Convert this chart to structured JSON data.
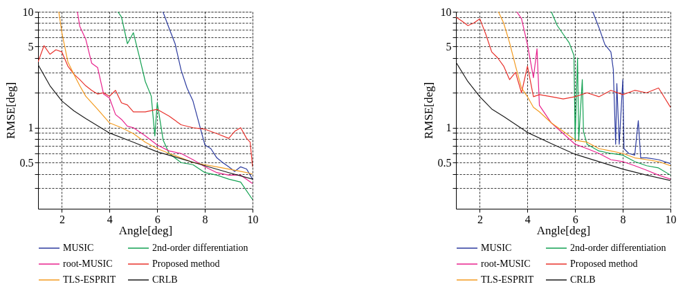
{
  "chart_data": [
    {
      "type": "line",
      "xlabel": "Angle[deg]",
      "ylabel": "RMSE[deg]",
      "log": "y",
      "grid": true,
      "legend": "bottom",
      "xlim": [
        1,
        10
      ],
      "xticks": [
        2,
        4,
        6,
        8,
        10
      ],
      "ylim": [
        0.2,
        10
      ],
      "yticks": [
        {
          "value": 0.3,
          "label": null
        },
        {
          "value": 0.4,
          "label": null
        },
        0.5,
        {
          "value": 0.6,
          "label": null
        },
        {
          "value": 0.7,
          "label": null
        },
        {
          "value": 0.8,
          "label": null
        },
        {
          "value": 0.9,
          "label": null
        },
        1,
        {
          "value": 2,
          "label": null
        },
        {
          "value": 3,
          "label": null
        },
        {
          "value": 4,
          "label": null
        },
        5,
        {
          "value": 6,
          "label": null
        },
        {
          "value": 7,
          "label": null
        },
        {
          "value": 8,
          "label": null
        },
        {
          "value": 9,
          "label": null
        },
        10
      ],
      "series": [
        {
          "name": "MUSIC",
          "color": "#2b3a9e",
          "x": [
            6.24,
            6.5,
            6.75,
            7,
            7.25,
            7.5,
            7.75,
            8,
            8.25,
            8.5,
            8.75,
            9,
            9.25,
            9.5,
            9.75,
            10
          ],
          "values": [
            10,
            7.2,
            5.3,
            3.15,
            2.2,
            1.7,
            1.1,
            0.71,
            0.66,
            0.55,
            0.5,
            0.46,
            0.42,
            0.46,
            0.44,
            0.36
          ]
        },
        {
          "name": "2nd-order differentiation",
          "color": "#11a050",
          "x": [
            4.35,
            4.5,
            4.75,
            5,
            5.25,
            5.5,
            5.75,
            5.9,
            6,
            6.25,
            6.5,
            7,
            7.5,
            8,
            8.5,
            9,
            9.5,
            10
          ],
          "values": [
            10,
            9.0,
            5.3,
            6.6,
            4.1,
            2.5,
            1.87,
            0.85,
            1.64,
            0.78,
            0.6,
            0.5,
            0.48,
            0.41,
            0.39,
            0.36,
            0.34,
            0.24
          ]
        },
        {
          "name": "root-MUSIC",
          "color": "#e8208c",
          "x": [
            2.65,
            2.75,
            3,
            3.25,
            3.5,
            3.75,
            4,
            4.25,
            4.5,
            4.75,
            5,
            5.5,
            6,
            6.5,
            7,
            7.5,
            8,
            8.5,
            9,
            9.5,
            10
          ],
          "values": [
            10,
            7.5,
            5.8,
            3.6,
            3.3,
            1.95,
            1.8,
            1.3,
            1.18,
            1.03,
            1.0,
            0.85,
            0.71,
            0.63,
            0.6,
            0.53,
            0.46,
            0.41,
            0.39,
            0.39,
            0.33
          ]
        },
        {
          "name": "Proposed method",
          "color": "#e8302a",
          "x": [
            1,
            1.25,
            1.5,
            1.75,
            2,
            2.25,
            2.5,
            2.75,
            3,
            3.25,
            3.5,
            3.75,
            4,
            4.25,
            4.5,
            4.75,
            5,
            5.5,
            6,
            6.5,
            7,
            7.5,
            8,
            8.5,
            9,
            9.25,
            9.5,
            9.75,
            9.9,
            10
          ],
          "values": [
            3.7,
            5.1,
            4.3,
            4.7,
            4.5,
            3.4,
            2.9,
            2.6,
            2.3,
            2.1,
            1.95,
            2.0,
            1.87,
            2.1,
            1.64,
            1.57,
            1.37,
            1.37,
            1.44,
            1.26,
            1.06,
            1.0,
            0.97,
            0.89,
            0.81,
            0.93,
            1.0,
            0.81,
            0.75,
            0.46
          ]
        },
        {
          "name": "TLS-ESPRIT",
          "color": "#f39a1e",
          "x": [
            1.87,
            2,
            2.25,
            2.5,
            2.75,
            3,
            3.5,
            4,
            4.5,
            5,
            5.5,
            6,
            6.5,
            7,
            7.5,
            8,
            8.5,
            9,
            9.5,
            10
          ],
          "values": [
            10,
            6.6,
            3.7,
            2.9,
            2.3,
            1.87,
            1.44,
            1.1,
            1.0,
            0.89,
            0.75,
            0.66,
            0.6,
            0.55,
            0.5,
            0.48,
            0.46,
            0.44,
            0.42,
            0.4
          ]
        },
        {
          "name": "CRLB",
          "color": "#1a1a1a",
          "x": [
            1,
            1.5,
            2,
            2.5,
            3,
            4,
            5,
            6,
            7,
            8,
            9,
            10
          ],
          "values": [
            3.5,
            2.3,
            1.7,
            1.4,
            1.2,
            0.9,
            0.75,
            0.62,
            0.54,
            0.47,
            0.41,
            0.36
          ]
        }
      ]
    },
    {
      "type": "line",
      "xlabel": "Angle[deg]",
      "ylabel": "RMSE[deg]",
      "log": "y",
      "grid": true,
      "legend": "bottom",
      "xlim": [
        1,
        10
      ],
      "xticks": [
        2,
        4,
        6,
        8,
        10
      ],
      "ylim": [
        0.2,
        10
      ],
      "yticks": [
        {
          "value": 0.3,
          "label": null
        },
        {
          "value": 0.4,
          "label": null
        },
        0.5,
        {
          "value": 0.6,
          "label": null
        },
        {
          "value": 0.7,
          "label": null
        },
        {
          "value": 0.8,
          "label": null
        },
        {
          "value": 0.9,
          "label": null
        },
        1,
        {
          "value": 2,
          "label": null
        },
        {
          "value": 3,
          "label": null
        },
        {
          "value": 4,
          "label": null
        },
        5,
        {
          "value": 6,
          "label": null
        },
        {
          "value": 7,
          "label": null
        },
        {
          "value": 8,
          "label": null
        },
        {
          "value": 9,
          "label": null
        },
        10
      ],
      "series": [
        {
          "name": "MUSIC",
          "color": "#2b3a9e",
          "x": [
            6.74,
            7,
            7.25,
            7.5,
            7.6,
            7.7,
            7.75,
            7.85,
            8,
            8.05,
            8.25,
            8.5,
            8.65,
            8.75,
            9,
            9.5,
            10
          ],
          "values": [
            10,
            7.3,
            5.2,
            4.5,
            3.2,
            0.72,
            2.4,
            0.72,
            2.6,
            0.66,
            0.6,
            0.58,
            1.15,
            0.55,
            0.55,
            0.53,
            0.49
          ]
        },
        {
          "name": "2nd-order differentiation",
          "color": "#11a050",
          "x": [
            5.0,
            5.25,
            5.5,
            5.75,
            5.95,
            6,
            6.1,
            6.15,
            6.3,
            6.35,
            6.5,
            7,
            7.5,
            8,
            8.5,
            9,
            9.5,
            10
          ],
          "values": [
            10,
            7.6,
            6.4,
            5.4,
            4.2,
            0.78,
            4.0,
            0.78,
            2.6,
            0.93,
            0.72,
            0.63,
            0.6,
            0.58,
            0.51,
            0.47,
            0.45,
            0.39
          ]
        },
        {
          "name": "root-MUSIC",
          "color": "#e8208c",
          "x": [
            3.55,
            3.75,
            4,
            4.25,
            4.4,
            4.5,
            5,
            5.5,
            6,
            6.5,
            7,
            7.5,
            8,
            8.5,
            9,
            9.5,
            10
          ],
          "values": [
            10,
            8.7,
            5.2,
            2.7,
            4.8,
            1.56,
            1.1,
            0.89,
            0.72,
            0.66,
            0.6,
            0.53,
            0.51,
            0.47,
            0.43,
            0.39,
            0.36
          ]
        },
        {
          "name": "Proposed method",
          "color": "#e8302a",
          "x": [
            1,
            1.25,
            1.5,
            1.75,
            2,
            2.25,
            2.5,
            2.75,
            3,
            3.25,
            3.5,
            3.75,
            4,
            4.25,
            4.5,
            5,
            5.5,
            6,
            6.5,
            7,
            7.5,
            8,
            8.5,
            9,
            9.5,
            10
          ],
          "values": [
            9.0,
            8.3,
            7.6,
            8.0,
            8.7,
            6.4,
            4.5,
            4.0,
            3.4,
            2.6,
            3.0,
            2.0,
            3.4,
            1.85,
            1.93,
            1.85,
            1.77,
            1.85,
            2.0,
            1.85,
            2.1,
            1.93,
            2.1,
            2.0,
            2.2,
            1.5
          ]
        },
        {
          "name": "TLS-ESPRIT",
          "color": "#f39a1e",
          "x": [
            2.78,
            3,
            3.25,
            3.5,
            3.75,
            4,
            4.25,
            4.5,
            5,
            5.5,
            6,
            6.5,
            7,
            7.5,
            8,
            8.5,
            9,
            9.5,
            10
          ],
          "values": [
            10,
            8.0,
            5.4,
            3.4,
            2.2,
            1.85,
            1.5,
            1.37,
            1.1,
            0.93,
            0.78,
            0.75,
            0.66,
            0.63,
            0.6,
            0.55,
            0.53,
            0.51,
            0.47
          ]
        },
        {
          "name": "CRLB",
          "color": "#1a1a1a",
          "x": [
            1,
            1.5,
            2,
            2.5,
            3,
            4,
            5,
            6,
            7,
            8,
            9,
            10
          ],
          "values": [
            3.67,
            2.5,
            1.85,
            1.45,
            1.25,
            0.91,
            0.73,
            0.59,
            0.51,
            0.44,
            0.39,
            0.35
          ]
        }
      ]
    }
  ]
}
